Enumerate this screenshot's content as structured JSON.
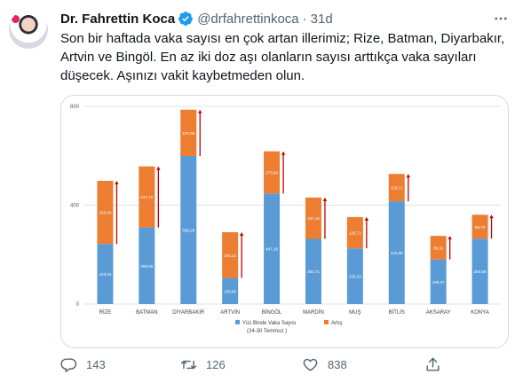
{
  "tweet": {
    "author_name": "Dr. Fahrettin Koca",
    "handle": "@drfahrettinkoca",
    "separator": "·",
    "time": "31d",
    "text": "Son bir haftada vaka sayısı en çok artan illerimiz; Rize, Batman, Diyarbakır, Artvin ve Bingöl. En az iki doz aşı olanların sayısı arttıkça vaka sayıları düşecek. Aşınızı vakit kaybetmeden olun.",
    "verified_icon": "verified-badge-icon",
    "colors": {
      "accent": "#1d9bf0",
      "secondary_text": "#536471"
    }
  },
  "actions": {
    "reply_count": "143",
    "retweet_count": "126",
    "like_count": "838"
  },
  "chart_data": {
    "type": "bar",
    "stacked": true,
    "categories": [
      "RİZE",
      "BATMAN",
      "DİYARBAKIR",
      "ARTVİN",
      "BİNGÖL",
      "MARDİN",
      "MUŞ",
      "BİTLİS",
      "AKSARAY",
      "KONYA"
    ],
    "series": [
      {
        "name": "Yüz Binde Vaka Sayısı",
        "color": "#5b9bd5",
        "values": [
          243.04,
          309.86,
          599.29,
          105.6,
          447.18,
          263.71,
          225.24,
          415.68,
          180.37,
          264.58
        ],
        "labels": [
          "243,04",
          "309,86",
          "599,29",
          "105,60",
          "447,18",
          "263,71",
          "225,24",
          "415,68",
          "180,37",
          "264,58"
        ]
      },
      {
        "name": "Artış",
        "color": "#ed7d31",
        "values": [
          255.63,
          247.15,
          187.08,
          185.12,
          170.84,
          167.16,
          126.72,
          110.71,
          95.31,
          96.78
        ],
        "labels": [
          "255,63",
          "247,15",
          "187,08",
          "185,12",
          "170,84",
          "167,16",
          "126,72",
          "110,71",
          "95,31",
          "96,78"
        ]
      }
    ],
    "legend": {
      "entries": [
        "Yüz Binde Vaka Sayısı",
        "(24-30 Temmuz )",
        "Artış"
      ],
      "placement": "bottom-center"
    },
    "yticks": [
      "0",
      "400",
      "800"
    ],
    "ylim": [
      0,
      800
    ],
    "arrow_color": "#c00000",
    "grid": true
  }
}
